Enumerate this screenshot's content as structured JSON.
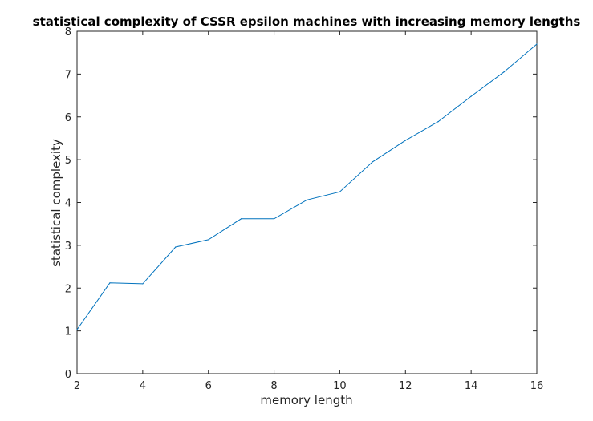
{
  "chart_data": {
    "type": "line",
    "title": "statistical complexity of CSSR epsilon machines with increasing memory lengths",
    "xlabel": "memory length",
    "ylabel": "statistical complexity",
    "xlim": [
      2,
      16
    ],
    "ylim": [
      0,
      8
    ],
    "xticks": [
      2,
      4,
      6,
      8,
      10,
      12,
      14,
      16
    ],
    "yticks": [
      0,
      1,
      2,
      3,
      4,
      5,
      6,
      7,
      8
    ],
    "grid": false,
    "series": [
      {
        "color": "#0072bd",
        "x": [
          2,
          3,
          4,
          5,
          6,
          7,
          8,
          9,
          10,
          11,
          12,
          13,
          14,
          15,
          16
        ],
        "y": [
          1.03,
          2.12,
          2.1,
          2.96,
          3.13,
          3.62,
          3.62,
          4.06,
          4.25,
          4.95,
          5.45,
          5.89,
          6.48,
          7.05,
          7.7
        ]
      }
    ]
  }
}
